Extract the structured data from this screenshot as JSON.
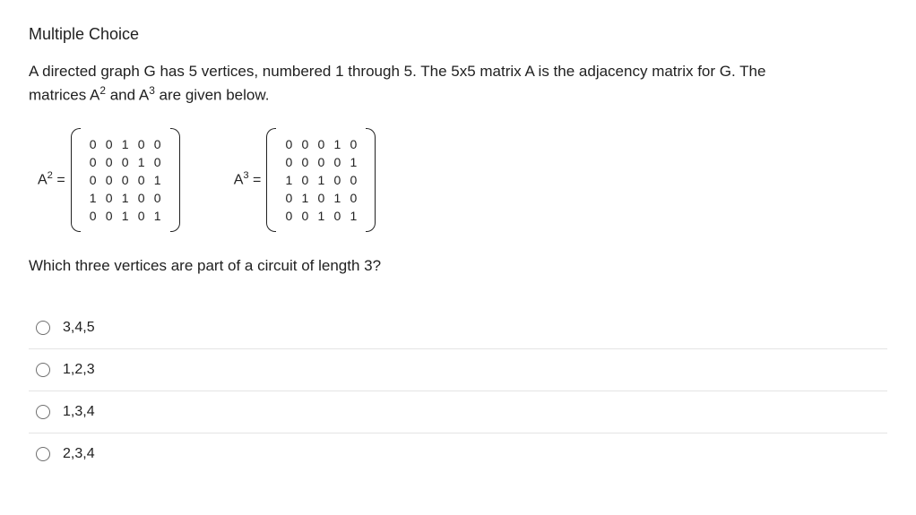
{
  "header": "Multiple Choice",
  "prompt_line1": "A directed graph G has 5 vertices, numbered 1 through 5.  The 5x5 matrix A is the adjacency matrix for G.  The",
  "prompt_line2_a": "matrices A",
  "prompt_line2_b": " and A",
  "prompt_line2_c": " are given below.",
  "sup2": "2",
  "sup3": "3",
  "matrix_a2": {
    "label_a": "A",
    "label_sup": "2",
    "label_eq": " =",
    "rows": [
      [
        "0",
        "0",
        "1",
        "0",
        "0"
      ],
      [
        "0",
        "0",
        "0",
        "1",
        "0"
      ],
      [
        "0",
        "0",
        "0",
        "0",
        "1"
      ],
      [
        "1",
        "0",
        "1",
        "0",
        "0"
      ],
      [
        "0",
        "0",
        "1",
        "0",
        "1"
      ]
    ]
  },
  "matrix_a3": {
    "label_a": "A",
    "label_sup": "3",
    "label_eq": " =",
    "rows": [
      [
        "0",
        "0",
        "0",
        "1",
        "0"
      ],
      [
        "0",
        "0",
        "0",
        "0",
        "1"
      ],
      [
        "1",
        "0",
        "1",
        "0",
        "0"
      ],
      [
        "0",
        "1",
        "0",
        "1",
        "0"
      ],
      [
        "0",
        "0",
        "1",
        "0",
        "1"
      ]
    ]
  },
  "question2": "Which three vertices are part of a circuit of length 3?",
  "options": [
    {
      "label": "3,4,5"
    },
    {
      "label": "1,2,3"
    },
    {
      "label": "1,3,4"
    },
    {
      "label": "2,3,4"
    }
  ]
}
